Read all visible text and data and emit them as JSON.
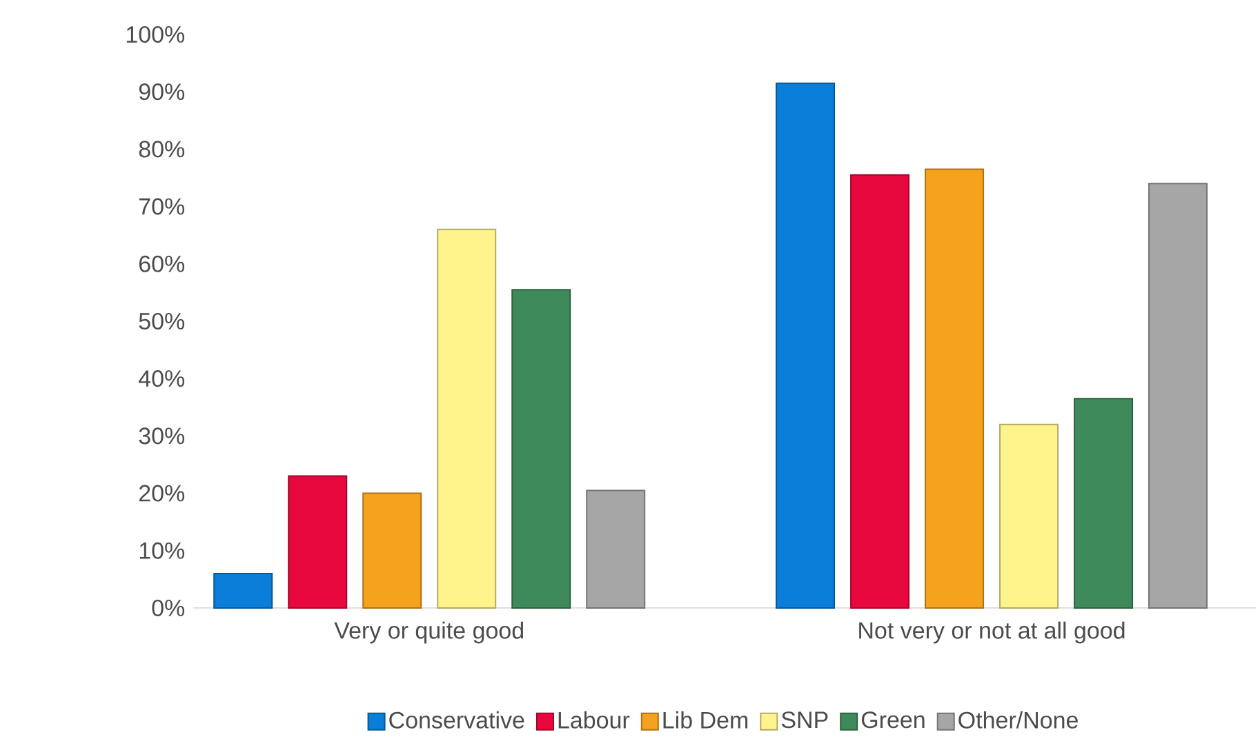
{
  "chart_data": {
    "type": "bar",
    "categories": [
      "Very or quite good",
      "Not very or not at all good"
    ],
    "series": [
      {
        "name": "Conservative",
        "color": "#0a7ed8",
        "values": [
          6,
          91.5
        ]
      },
      {
        "name": "Labour",
        "color": "#e8083e",
        "values": [
          23,
          75.5
        ]
      },
      {
        "name": "Lib Dem",
        "color": "#f5a31e",
        "values": [
          20,
          76.5
        ]
      },
      {
        "name": "SNP",
        "color": "#fff38c",
        "values": [
          66,
          32
        ]
      },
      {
        "name": "Green",
        "color": "#3f8a5a",
        "values": [
          55.5,
          36.5
        ]
      },
      {
        "name": "Other/None",
        "color": "#a6a6a6",
        "values": [
          20.5,
          74
        ]
      }
    ],
    "ylim": [
      0,
      100
    ],
    "yticks": [
      {
        "value": 0,
        "label": "0%"
      },
      {
        "value": 10,
        "label": "10%"
      },
      {
        "value": 20,
        "label": "20%"
      },
      {
        "value": 30,
        "label": "30%"
      },
      {
        "value": 40,
        "label": "40%"
      },
      {
        "value": 50,
        "label": "50%"
      },
      {
        "value": 60,
        "label": "60%"
      },
      {
        "value": 70,
        "label": "70%"
      },
      {
        "value": 80,
        "label": "80%"
      },
      {
        "value": 90,
        "label": "90%"
      },
      {
        "value": 100,
        "label": "100%"
      }
    ],
    "grid": false,
    "legend": "bottom"
  }
}
